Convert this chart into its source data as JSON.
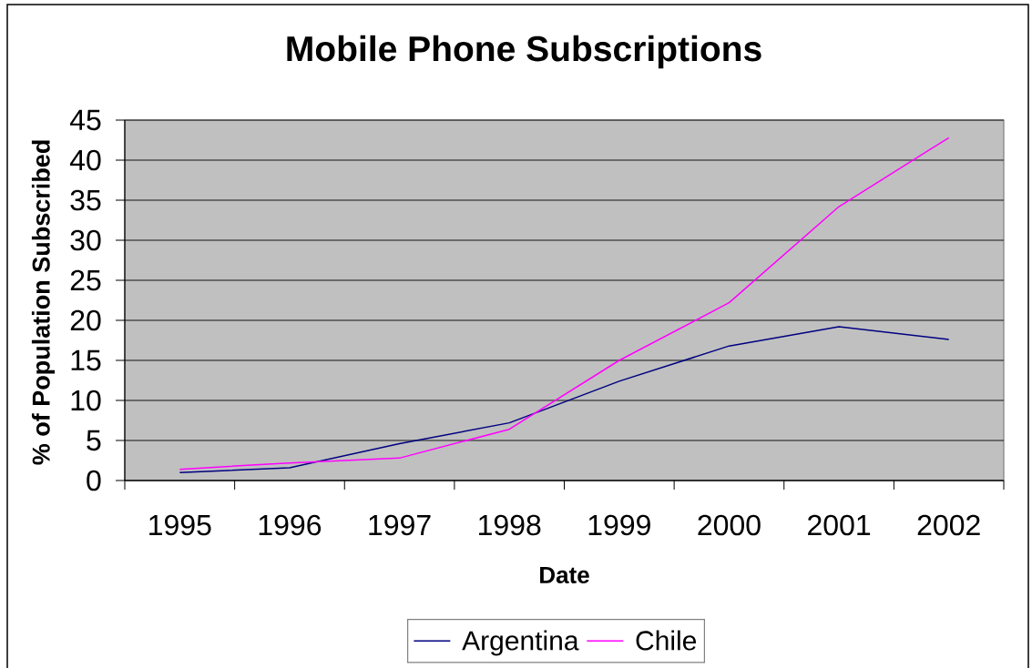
{
  "chart_data": {
    "type": "line",
    "title": "Mobile Phone Subscriptions",
    "xlabel": "Date",
    "ylabel": "% of Population Subscribed",
    "categories": [
      "1995",
      "1996",
      "1997",
      "1998",
      "1999",
      "2000",
      "2001",
      "2002"
    ],
    "series": [
      {
        "name": "Argentina",
        "color": "#000080",
        "values": [
          1.0,
          1.6,
          4.6,
          7.2,
          12.4,
          16.8,
          19.2,
          17.6
        ]
      },
      {
        "name": "Chile",
        "color": "#ff00ff",
        "values": [
          1.4,
          2.2,
          2.8,
          6.4,
          15.0,
          22.2,
          34.2,
          42.8
        ]
      }
    ],
    "ylim": [
      0,
      45
    ],
    "yticks": [
      0,
      5,
      10,
      15,
      20,
      25,
      30,
      35,
      40,
      45
    ],
    "grid": "y",
    "legend": "bottom"
  }
}
